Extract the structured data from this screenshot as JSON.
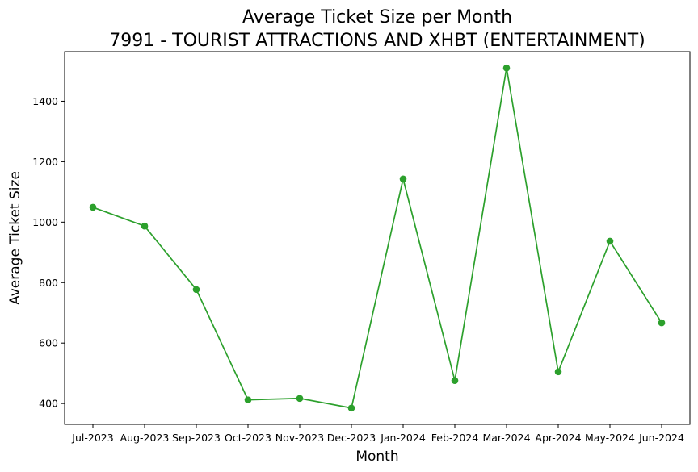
{
  "chart_data": {
    "type": "line",
    "title": "Average Ticket Size per Month",
    "subtitle": "7991 - TOURIST ATTRACTIONS AND XHBT (ENTERTAINMENT)",
    "xlabel": "Month",
    "ylabel": "Average Ticket Size",
    "categories": [
      "Jul-2023",
      "Aug-2023",
      "Sep-2023",
      "Oct-2023",
      "Nov-2023",
      "Dec-2023",
      "Jan-2024",
      "Feb-2024",
      "Mar-2024",
      "Apr-2024",
      "May-2024",
      "Jun-2024"
    ],
    "series": [
      {
        "values": [
          1049,
          987,
          777,
          412,
          417,
          385,
          1143,
          476,
          1510,
          505,
          937,
          667
        ],
        "color": "#2ca02c",
        "marker": "circle"
      }
    ],
    "ylim": [
      331,
      1564
    ],
    "yticks": [
      400,
      600,
      800,
      1000,
      1200,
      1400
    ],
    "grid": false,
    "legend": "none"
  }
}
